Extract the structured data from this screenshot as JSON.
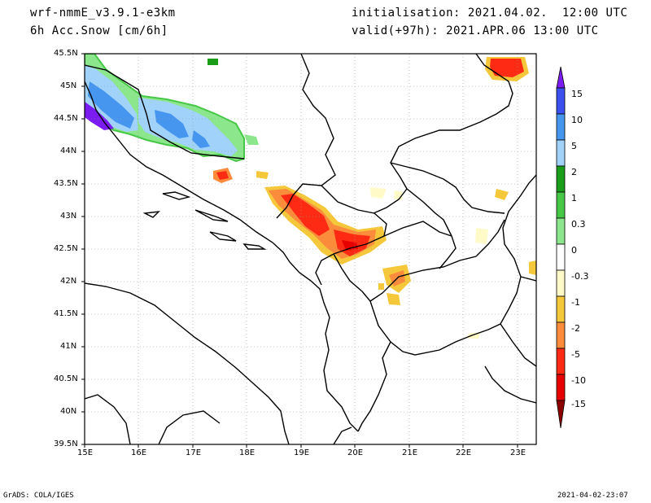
{
  "header": {
    "model": "wrf-nmmE_v3.9.1-e3km",
    "field": "6h Acc.Snow [cm/6h]",
    "init": "initialisation: 2021.04.02.  12:00 UTC",
    "valid": "valid(+97h): 2021.APR.06 13:00 UTC"
  },
  "axes": {
    "lat_labels": [
      "45.5N",
      "45N",
      "44.5N",
      "44N",
      "43.5N",
      "43N",
      "42.5N",
      "42N",
      "41.5N",
      "41N",
      "40.5N",
      "40N",
      "39.5N"
    ],
    "lon_labels": [
      "15E",
      "16E",
      "17E",
      "18E",
      "19E",
      "20E",
      "21E",
      "22E",
      "23E"
    ]
  },
  "colorbar": {
    "labels": [
      "15",
      "10",
      "5",
      "2",
      "1",
      "0.3",
      "0",
      "-0.3",
      "-1",
      "-2",
      "-5",
      "-10",
      "-15"
    ],
    "colors": [
      "#7a1cf0",
      "#3c50f0",
      "#4696f0",
      "#a0d2fa",
      "#1a9e1a",
      "#46c846",
      "#8ce68c",
      "#ffffff",
      "#ffffff",
      "#fffac8",
      "#f5c83c",
      "#fa8c3c",
      "#ff2a14",
      "#e60000",
      "#b40000",
      "#8c0000"
    ]
  },
  "footer": {
    "left": "GrADS: COLA/IGES",
    "right": "2021-04-02-23:07"
  }
}
